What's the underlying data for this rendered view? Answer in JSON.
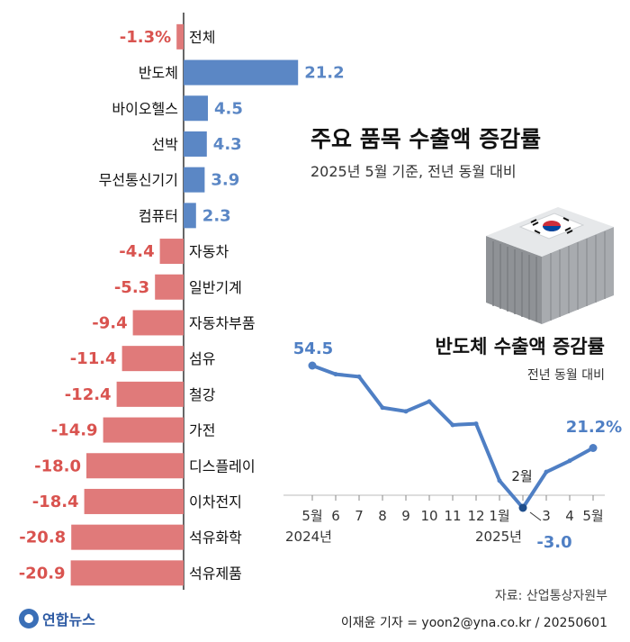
{
  "colors": {
    "positive": "#5b87c5",
    "negative": "#e07a7a",
    "negative_text": "#d9534f",
    "line": "#4f7fc4",
    "axis": "#333333",
    "muted": "#555555"
  },
  "bar_chart": {
    "title": "주요 품목 수출액 증감률",
    "subtitle": "2025년 5월 기준, 전년 동월 대비"
  },
  "line_chart": {
    "title": "반도체 수출액 증감률",
    "subtitle": "전년 동월 대비",
    "year_labels": [
      "2024년",
      "2025년"
    ],
    "start_label": "54.5",
    "end_label": "21.2%",
    "min_label": "-3.0",
    "min_month_label": "2월"
  },
  "illustration": {
    "name": "shipping container with Korean flag"
  },
  "footer": {
    "source": "자료: 산업통상자원부",
    "credit": "이재윤 기자 = yoon2@yna.co.kr / 20250601",
    "logo_text": "연합뉴스"
  },
  "chart_data": [
    {
      "type": "bar",
      "orientation": "horizontal",
      "categories": [
        "전체",
        "반도체",
        "바이오헬스",
        "선박",
        "무선통신기기",
        "컴퓨터",
        "자동차",
        "일반기계",
        "자동차부품",
        "섬유",
        "철강",
        "가전",
        "디스플레이",
        "이차전지",
        "석유화학",
        "석유제품"
      ],
      "values": [
        -1.3,
        21.2,
        4.5,
        4.3,
        3.9,
        2.3,
        -4.4,
        -5.3,
        -9.4,
        -11.4,
        -12.4,
        -14.9,
        -18.0,
        -18.4,
        -20.8,
        -20.9
      ],
      "value_labels": [
        "-1.3%",
        "21.2",
        "4.5",
        "4.3",
        "3.9",
        "2.3",
        "-4.4",
        "-5.3",
        "-9.4",
        "-11.4",
        "-12.4",
        "-14.9",
        "-18.0",
        "-18.4",
        "-20.8",
        "-20.9"
      ],
      "title": "주요 품목 수출액 증감률",
      "subtitle": "2025년 5월 기준, 전년 동월 대비"
    },
    {
      "type": "line",
      "title": "반도체 수출액 증감률",
      "subtitle": "전년 동월 대비",
      "x": [
        "5월",
        "6",
        "7",
        "8",
        "9",
        "10",
        "11",
        "12",
        "1월",
        "2월",
        "3",
        "4",
        "5월"
      ],
      "values": [
        54.5,
        51.0,
        50.0,
        37.5,
        36.0,
        40.0,
        30.5,
        31.0,
        8.0,
        -3.0,
        11.5,
        16.0,
        21.2
      ],
      "highlight_points": [
        0,
        9,
        12
      ]
    }
  ]
}
